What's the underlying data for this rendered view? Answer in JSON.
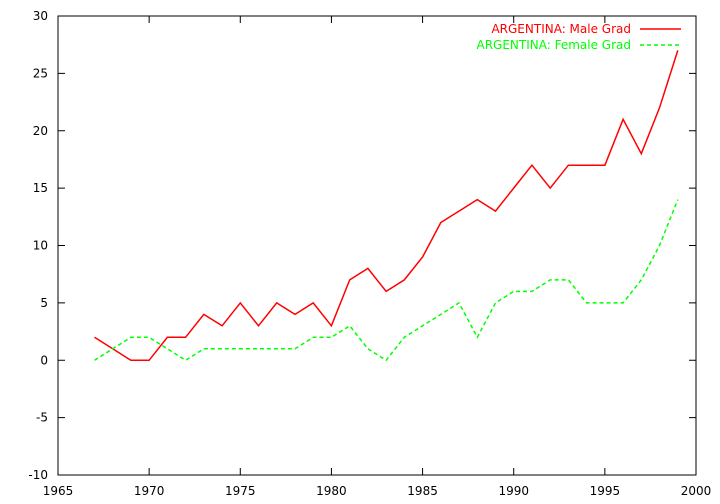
{
  "chart_data": {
    "type": "line",
    "title": "",
    "xlabel": "",
    "ylabel": "",
    "xlim": [
      1965,
      2000
    ],
    "ylim": [
      -10,
      30
    ],
    "x_ticks": [
      1965,
      1970,
      1975,
      1980,
      1985,
      1990,
      1995,
      2000
    ],
    "y_ticks": [
      -10,
      -5,
      0,
      5,
      10,
      15,
      20,
      25,
      30
    ],
    "grid": false,
    "legend_position": "top-right",
    "x": [
      1967,
      1968,
      1969,
      1970,
      1971,
      1972,
      1973,
      1974,
      1975,
      1976,
      1977,
      1978,
      1979,
      1980,
      1981,
      1982,
      1983,
      1984,
      1985,
      1986,
      1987,
      1988,
      1989,
      1990,
      1991,
      1992,
      1993,
      1994,
      1995,
      1996,
      1997,
      1998,
      1999
    ],
    "series": [
      {
        "name": "ARGENTINA: Male Grad",
        "color": "#ff0000",
        "dash": "solid",
        "values": [
          2,
          1,
          0,
          0,
          2,
          2,
          4,
          3,
          5,
          3,
          5,
          4,
          5,
          3,
          7,
          8,
          6,
          7,
          9,
          12,
          13,
          14,
          13,
          15,
          17,
          15,
          17,
          17,
          17,
          21,
          18,
          22,
          27
        ]
      },
      {
        "name": "ARGENTINA: Female Grad",
        "color": "#00ff00",
        "dash": "dashed",
        "values": [
          0,
          1,
          2,
          2,
          1,
          0,
          1,
          1,
          1,
          1,
          1,
          1,
          2,
          2,
          3,
          1,
          0,
          2,
          3,
          4,
          5,
          2,
          5,
          6,
          6,
          7,
          7,
          5,
          5,
          5,
          7,
          10,
          14
        ]
      }
    ]
  }
}
